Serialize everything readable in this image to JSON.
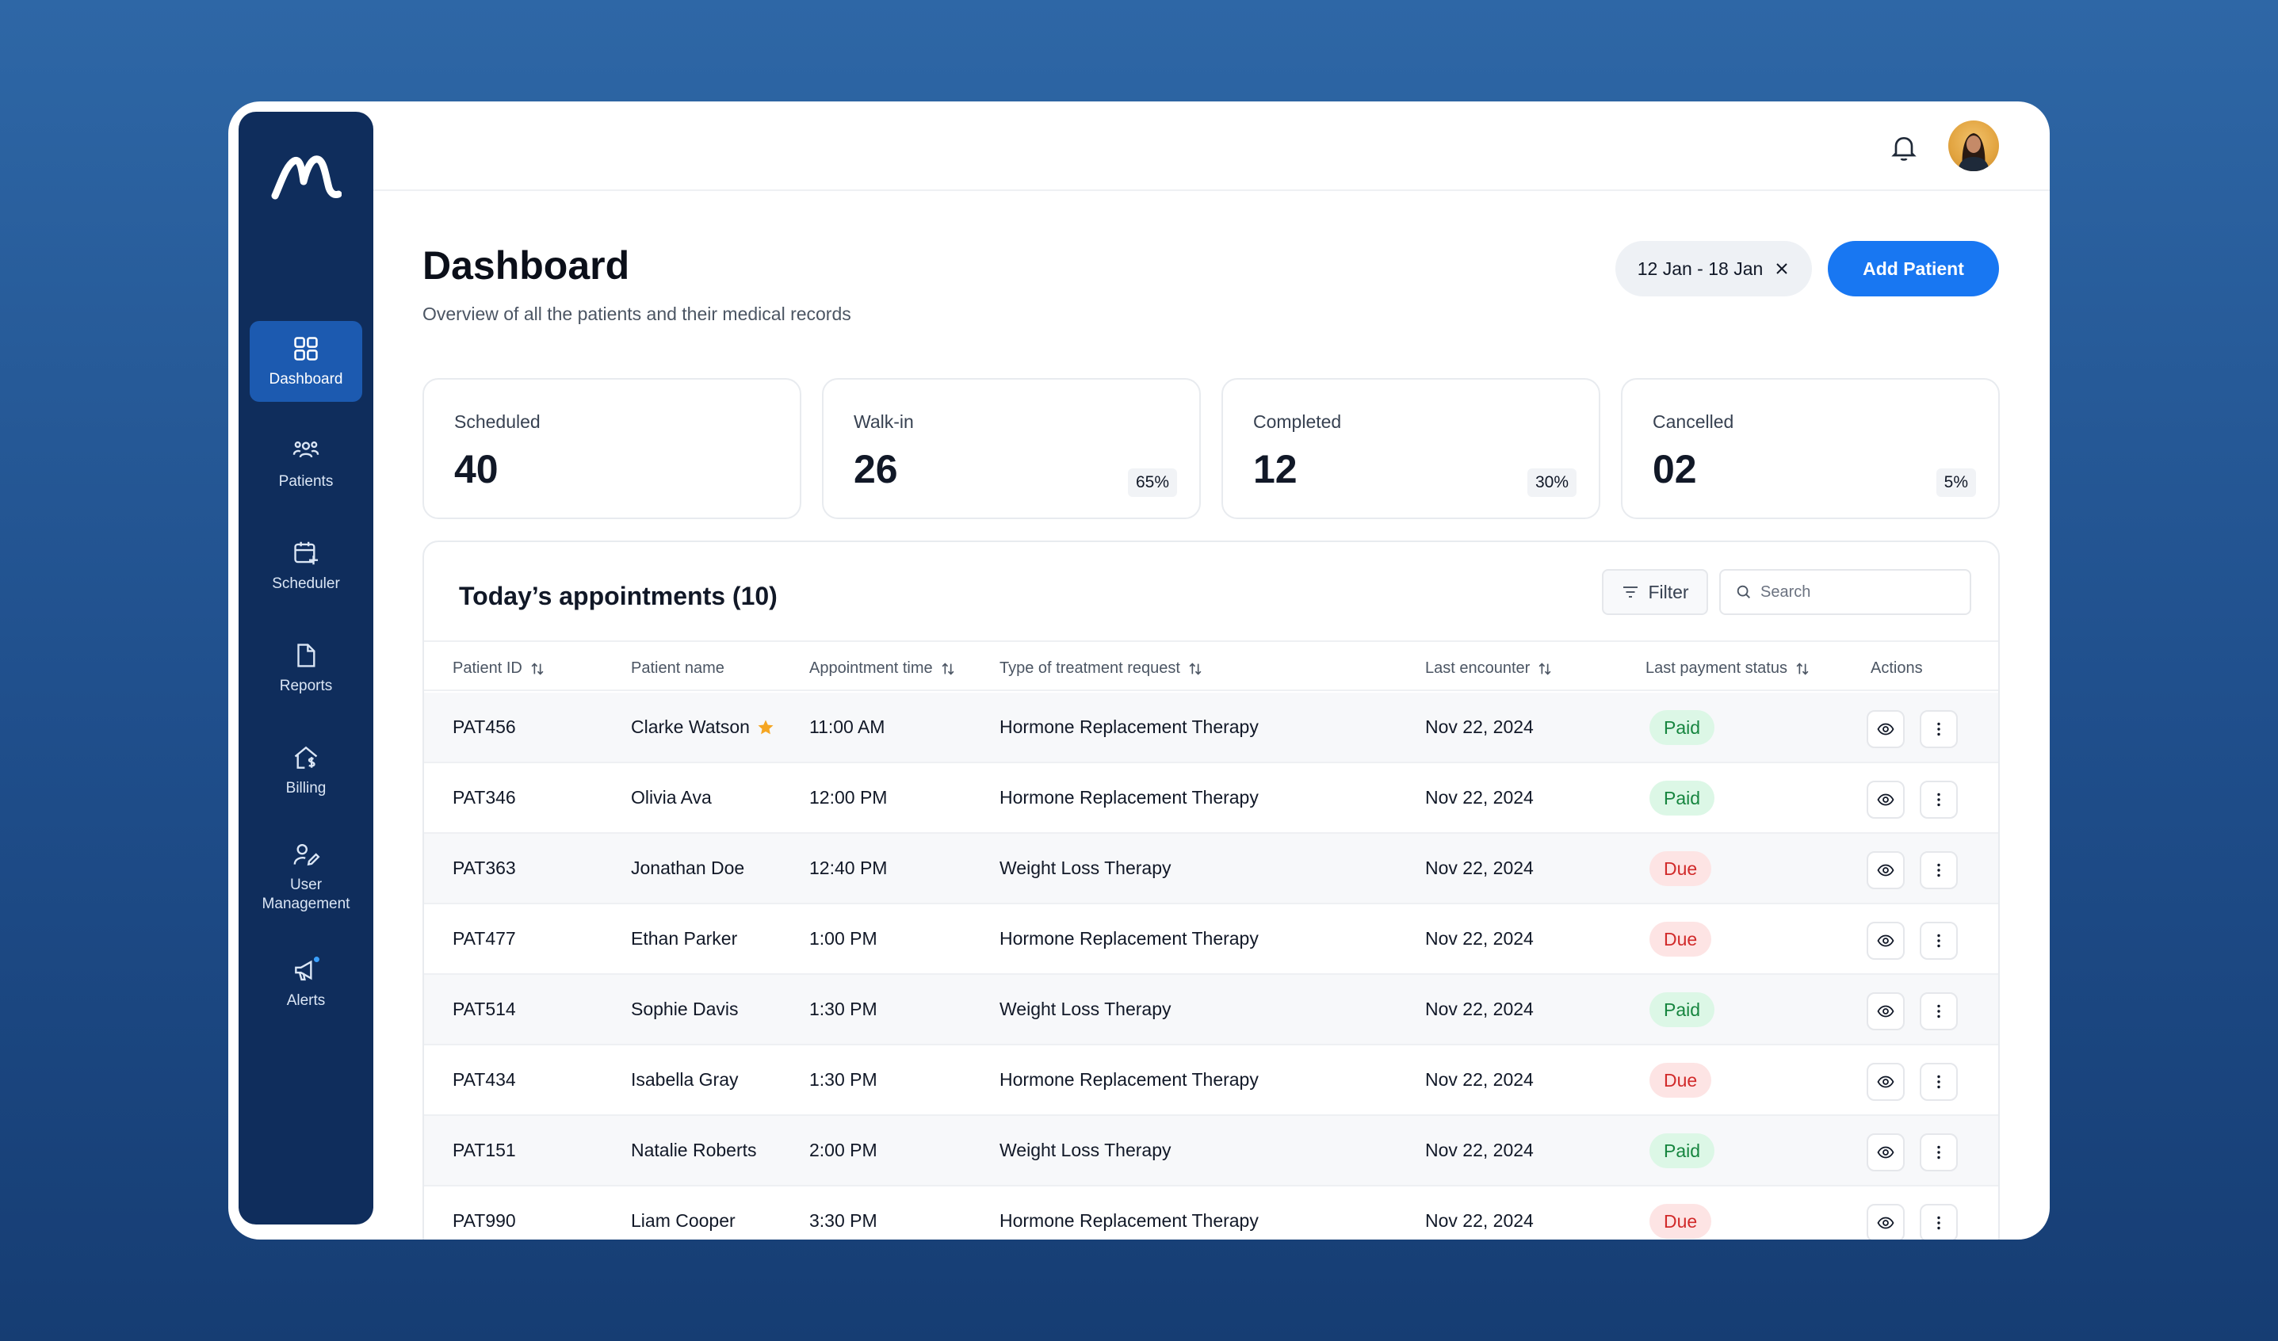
{
  "nav": [
    {
      "id": "dashboard",
      "label": "Dashboard",
      "icon": "grid-icon",
      "active": true
    },
    {
      "id": "patients",
      "label": "Patients",
      "icon": "users-icon"
    },
    {
      "id": "scheduler",
      "label": "Scheduler",
      "icon": "calendar-plus-icon"
    },
    {
      "id": "reports",
      "label": "Reports",
      "icon": "document-icon"
    },
    {
      "id": "billing",
      "label": "Billing",
      "icon": "house-dollar-icon"
    },
    {
      "id": "user-management",
      "label": "User Management",
      "icon": "user-edit-icon"
    },
    {
      "id": "alerts",
      "label": "Alerts",
      "icon": "megaphone-icon"
    }
  ],
  "header": {
    "title": "Dashboard",
    "subtitle": "Overview of all the patients and their medical records",
    "date_range": "12 Jan - 18 Jan",
    "add_button": "Add Patient"
  },
  "stats": [
    {
      "label": "Scheduled",
      "value": "40",
      "pct": ""
    },
    {
      "label": "Walk-in",
      "value": "26",
      "pct": "65%"
    },
    {
      "label": "Completed",
      "value": "12",
      "pct": "30%"
    },
    {
      "label": "Cancelled",
      "value": "02",
      "pct": "5%"
    }
  ],
  "table": {
    "title": "Today’s appointments (10)",
    "filter_label": "Filter",
    "search_placeholder": "Search",
    "columns": [
      "Patient ID",
      "Patient name",
      "Appointment time",
      "Type of treatment request",
      "Last encounter",
      "Last payment status",
      "Actions"
    ],
    "rows": [
      {
        "id": "PAT456",
        "name": "Clarke Watson",
        "starred": true,
        "time": "11:00 AM",
        "treatment": "Hormone Replacement Therapy",
        "last": "Nov 22, 2024",
        "status": "Paid"
      },
      {
        "id": "PAT346",
        "name": "Olivia Ava",
        "time": "12:00 PM",
        "treatment": "Hormone Replacement Therapy",
        "last": "Nov 22, 2024",
        "status": "Paid"
      },
      {
        "id": "PAT363",
        "name": "Jonathan Doe",
        "time": "12:40 PM",
        "treatment": "Weight Loss Therapy",
        "last": "Nov 22, 2024",
        "status": "Due"
      },
      {
        "id": "PAT477",
        "name": "Ethan Parker",
        "time": "1:00 PM",
        "treatment": "Hormone Replacement Therapy",
        "last": "Nov 22, 2024",
        "status": "Due"
      },
      {
        "id": "PAT514",
        "name": "Sophie Davis",
        "time": "1:30 PM",
        "treatment": "Weight Loss Therapy",
        "last": "Nov 22, 2024",
        "status": "Paid"
      },
      {
        "id": "PAT434",
        "name": "Isabella Gray",
        "time": "1:30 PM",
        "treatment": "Hormone Replacement Therapy",
        "last": "Nov 22, 2024",
        "status": "Due"
      },
      {
        "id": "PAT151",
        "name": "Natalie Roberts",
        "time": "2:00 PM",
        "treatment": "Weight Loss Therapy",
        "last": "Nov 22, 2024",
        "status": "Paid"
      },
      {
        "id": "PAT990",
        "name": "Liam Cooper",
        "time": "3:30 PM",
        "treatment": "Hormone Replacement Therapy",
        "last": "Nov 22, 2024",
        "status": "Due"
      }
    ]
  },
  "colors": {
    "accent": "#1877f2",
    "sidebar": "#0f2d5c",
    "paid": "#16853f",
    "due": "#d12a2a",
    "star": "#f5a623",
    "alert_dot": "#3aa0ff"
  }
}
